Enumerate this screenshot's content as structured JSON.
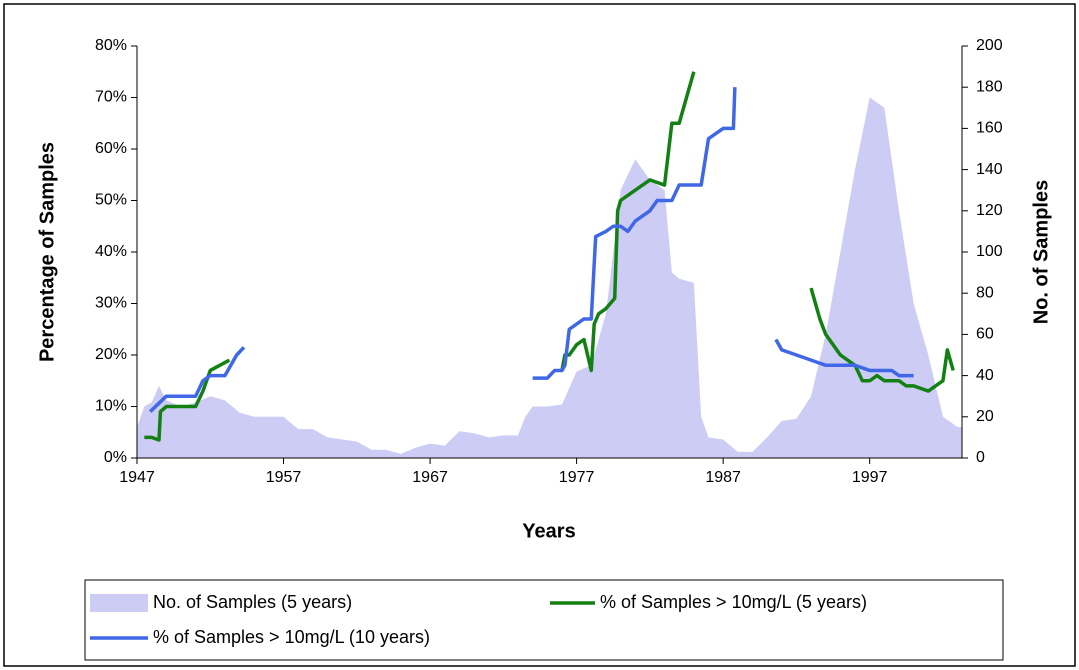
{
  "chart_data": {
    "type": "line",
    "xlabel": "Years",
    "ylabel": "Percentage of Samples",
    "y2label": "No. of Samples",
    "xlim": [
      1947,
      2003.3
    ],
    "xticks": [
      1947,
      1957,
      1967,
      1977,
      1987,
      1997
    ],
    "ylim": [
      0,
      80
    ],
    "yticks": [
      {
        "value": 0,
        "label": "0%"
      },
      {
        "value": 10,
        "label": "10%"
      },
      {
        "value": 20,
        "label": "20%"
      },
      {
        "value": 30,
        "label": "30%"
      },
      {
        "value": 40,
        "label": "40%"
      },
      {
        "value": 50,
        "label": "50%"
      },
      {
        "value": 60,
        "label": "60%"
      },
      {
        "value": 70,
        "label": "70%"
      },
      {
        "value": 80,
        "label": "80%"
      }
    ],
    "y2lim": [
      0,
      200
    ],
    "y2ticks": [
      0,
      20,
      40,
      60,
      80,
      100,
      120,
      140,
      160,
      180,
      200
    ],
    "series": [
      {
        "name": "No. of Samples (5 years)",
        "type": "area",
        "axis": "y2",
        "color": "#ccccf5",
        "x": [
          1947,
          1947.5,
          1948,
          1948.5,
          1949,
          1950,
          1951,
          1952,
          1953,
          1954,
          1955,
          1956,
          1957,
          1957.5,
          1958,
          1959,
          1960,
          1961,
          1962,
          1963,
          1964,
          1965,
          1966,
          1967,
          1968,
          1969,
          1970,
          1971,
          1972,
          1973,
          1973.5,
          1974,
          1975,
          1976,
          1977,
          1978,
          1979,
          1980,
          1981,
          1982,
          1983,
          1983.5,
          1984,
          1985,
          1985.5,
          1986,
          1987,
          1988,
          1989,
          1990,
          1991,
          1992,
          1993,
          1994,
          1995,
          1996,
          1997,
          1998,
          1999,
          2000,
          2001,
          2002,
          2003,
          2003.3
        ],
        "values": [
          15,
          25,
          27,
          35,
          28,
          25,
          27,
          30,
          28,
          22,
          20,
          20,
          20,
          17,
          14,
          14,
          10,
          9,
          8,
          4,
          4,
          2,
          5,
          7,
          6,
          13,
          12,
          10,
          11,
          11,
          20,
          25,
          25,
          26,
          42,
          45,
          70,
          130,
          145,
          135,
          130,
          90,
          87,
          85,
          20,
          10,
          9,
          3,
          3,
          10,
          18,
          19,
          30,
          60,
          100,
          140,
          175,
          170,
          120,
          75,
          50,
          20,
          15,
          15
        ]
      },
      {
        "name": "% of Samples > 10mg/L (5 years)",
        "type": "line",
        "color": "#138013",
        "x": [
          1947.5,
          1948,
          1948.5,
          1948.6,
          1949,
          1949.5,
          1950,
          1951,
          1951.5,
          1952,
          1953.3,
          null,
          1976,
          1976.2,
          1976.5,
          1977,
          1977.5,
          1978,
          1978.2,
          1978.5,
          1979,
          1979.3,
          1979.6,
          1979.8,
          1980,
          1981,
          1982,
          1983,
          1983.5,
          1984,
          1985,
          null,
          1993,
          1993.3,
          1993.6,
          1994,
          1994.5,
          1995,
          1995.5,
          1996,
          1996.5,
          1997,
          1997.5,
          1998,
          1999,
          1999.5,
          2000,
          2001,
          2002,
          2002.3,
          2002.7
        ],
        "values": [
          4,
          4,
          3.5,
          9,
          10,
          10,
          10,
          10,
          13,
          17,
          19,
          null,
          17,
          20,
          20,
          22,
          23,
          17,
          26,
          28,
          29,
          30,
          31,
          48,
          50,
          52,
          54,
          53,
          65,
          65,
          75,
          null,
          33,
          30,
          27,
          24,
          22,
          20,
          19,
          18,
          15,
          15,
          16,
          15,
          15,
          14,
          14,
          13,
          15,
          21,
          17
        ]
      },
      {
        "name": "% of Samples > 10mg/L (10 years)",
        "type": "line",
        "color": "#3f67e6",
        "x": [
          1947.9,
          1949,
          1950,
          1951,
          1951.5,
          1952,
          1952.5,
          1953,
          1953.8,
          1954.3,
          null,
          1974,
          1975,
          1975.5,
          1976,
          1976.2,
          1976.5,
          1977,
          1977.5,
          1978,
          1978.3,
          1979,
          1979.5,
          1980,
          1980.5,
          1981,
          1981.5,
          1982,
          1982.5,
          1983,
          1983.5,
          1984,
          1985,
          1985.5,
          1986,
          1986.5,
          1987,
          1987.7,
          1987.8,
          null,
          1990.6,
          1991,
          1992,
          1993,
          1994,
          1995,
          1996,
          1997,
          1998,
          1998.5,
          1999,
          1999.5,
          2000
        ],
        "values": [
          9,
          12,
          12,
          12,
          15,
          16,
          16,
          16,
          20,
          21.5,
          null,
          15.5,
          15.5,
          17,
          17,
          18,
          25,
          26,
          27,
          27,
          43,
          44,
          45,
          45,
          44,
          46,
          47,
          48,
          50,
          50,
          50,
          53,
          53,
          53,
          62,
          63,
          64,
          64,
          72,
          null,
          23,
          21,
          20,
          19,
          18,
          18,
          18,
          17,
          17,
          17,
          16,
          16,
          16
        ]
      }
    ]
  }
}
